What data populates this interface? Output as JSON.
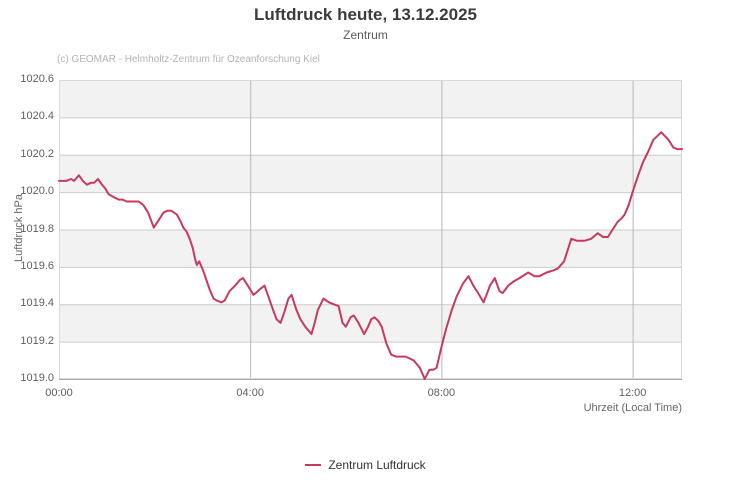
{
  "chart_data": {
    "type": "line",
    "title": "Luftdruck heute, 13.12.2025",
    "subtitle": "Zentrum",
    "credits": "(c) GEOMAR - Helmholtz-Zentrum für Ozeanforschung Kiel",
    "xlabel": "Uhrzeit (Local Time)",
    "ylabel": "Luftdruck hPa",
    "ylim": [
      1019.0,
      1020.6
    ],
    "xlim_minutes": [
      0,
      782
    ],
    "grid": {
      "band_color": "#f2f2f2",
      "h_gridline_color": "#cccccc",
      "v_gridline_color": "#b9b9b9",
      "border_color": "#d9d9d9",
      "axis_line_color": "#a9a9a9",
      "alternating_bands": true
    },
    "legend_position": "bottom-center",
    "y_ticks": [
      {
        "v": 1019.0,
        "label": "1019.0"
      },
      {
        "v": 1019.2,
        "label": "1019.2"
      },
      {
        "v": 1019.4,
        "label": "1019.4"
      },
      {
        "v": 1019.6,
        "label": "1019.6"
      },
      {
        "v": 1019.8,
        "label": "1019.8"
      },
      {
        "v": 1020.0,
        "label": "1020.0"
      },
      {
        "v": 1020.2,
        "label": "1020.2"
      },
      {
        "v": 1020.4,
        "label": "1020.4"
      },
      {
        "v": 1020.6,
        "label": "1020.6"
      }
    ],
    "x_ticks": [
      {
        "t": 0,
        "label": "00:00"
      },
      {
        "t": 240,
        "label": "04:00"
      },
      {
        "t": 480,
        "label": "08:00"
      },
      {
        "t": 720,
        "label": "12:00"
      }
    ],
    "series": [
      {
        "name": "Zentrum Luftdruck",
        "color": "#c63a5d",
        "points": [
          [
            0,
            1020.06
          ],
          [
            9,
            1020.06
          ],
          [
            15,
            1020.07
          ],
          [
            19,
            1020.06
          ],
          [
            25,
            1020.09
          ],
          [
            30,
            1020.06
          ],
          [
            35,
            1020.04
          ],
          [
            40,
            1020.05
          ],
          [
            44,
            1020.05
          ],
          [
            49,
            1020.07
          ],
          [
            54,
            1020.04
          ],
          [
            58,
            1020.02
          ],
          [
            62,
            1019.99
          ],
          [
            66,
            1019.98
          ],
          [
            70,
            1019.97
          ],
          [
            75,
            1019.96
          ],
          [
            80,
            1019.96
          ],
          [
            85,
            1019.95
          ],
          [
            90,
            1019.95
          ],
          [
            95,
            1019.95
          ],
          [
            100,
            1019.95
          ],
          [
            106,
            1019.93
          ],
          [
            112,
            1019.89
          ],
          [
            119,
            1019.81
          ],
          [
            125,
            1019.85
          ],
          [
            131,
            1019.89
          ],
          [
            136,
            1019.9
          ],
          [
            141,
            1019.9
          ],
          [
            148,
            1019.88
          ],
          [
            153,
            1019.84
          ],
          [
            156,
            1019.81
          ],
          [
            160,
            1019.79
          ],
          [
            164,
            1019.75
          ],
          [
            168,
            1019.7
          ],
          [
            171,
            1019.64
          ],
          [
            173,
            1019.61
          ],
          [
            176,
            1019.63
          ],
          [
            181,
            1019.58
          ],
          [
            185,
            1019.53
          ],
          [
            189,
            1019.48
          ],
          [
            194,
            1019.43
          ],
          [
            198,
            1019.42
          ],
          [
            204,
            1019.41
          ],
          [
            208,
            1019.42
          ],
          [
            214,
            1019.47
          ],
          [
            221,
            1019.5
          ],
          [
            227,
            1019.53
          ],
          [
            231,
            1019.54
          ],
          [
            237,
            1019.5
          ],
          [
            244,
            1019.45
          ],
          [
            247,
            1019.46
          ],
          [
            252,
            1019.48
          ],
          [
            258,
            1019.5
          ],
          [
            263,
            1019.44
          ],
          [
            267,
            1019.39
          ],
          [
            273,
            1019.32
          ],
          [
            278,
            1019.3
          ],
          [
            283,
            1019.36
          ],
          [
            288,
            1019.43
          ],
          [
            292,
            1019.45
          ],
          [
            298,
            1019.37
          ],
          [
            303,
            1019.32
          ],
          [
            309,
            1019.28
          ],
          [
            313,
            1019.26
          ],
          [
            317,
            1019.24
          ],
          [
            321,
            1019.3
          ],
          [
            325,
            1019.37
          ],
          [
            332,
            1019.43
          ],
          [
            339,
            1019.41
          ],
          [
            345,
            1019.4
          ],
          [
            351,
            1019.39
          ],
          [
            356,
            1019.3
          ],
          [
            360,
            1019.28
          ],
          [
            366,
            1019.33
          ],
          [
            370,
            1019.34
          ],
          [
            376,
            1019.3
          ],
          [
            383,
            1019.24
          ],
          [
            388,
            1019.28
          ],
          [
            392,
            1019.32
          ],
          [
            396,
            1019.33
          ],
          [
            401,
            1019.31
          ],
          [
            405,
            1019.28
          ],
          [
            411,
            1019.19
          ],
          [
            417,
            1019.13
          ],
          [
            423,
            1019.12
          ],
          [
            429,
            1019.12
          ],
          [
            435,
            1019.12
          ],
          [
            440,
            1019.11
          ],
          [
            445,
            1019.1
          ],
          [
            449,
            1019.08
          ],
          [
            453,
            1019.06
          ],
          [
            459,
            1019.0
          ],
          [
            465,
            1019.05
          ],
          [
            470,
            1019.05
          ],
          [
            474,
            1019.06
          ],
          [
            480,
            1019.17
          ],
          [
            486,
            1019.27
          ],
          [
            493,
            1019.37
          ],
          [
            499,
            1019.44
          ],
          [
            507,
            1019.51
          ],
          [
            514,
            1019.55
          ],
          [
            520,
            1019.5
          ],
          [
            526,
            1019.46
          ],
          [
            533,
            1019.41
          ],
          [
            541,
            1019.5
          ],
          [
            547,
            1019.54
          ],
          [
            553,
            1019.47
          ],
          [
            557,
            1019.46
          ],
          [
            564,
            1019.5
          ],
          [
            570,
            1019.52
          ],
          [
            578,
            1019.54
          ],
          [
            589,
            1019.57
          ],
          [
            597,
            1019.55
          ],
          [
            603,
            1019.55
          ],
          [
            612,
            1019.57
          ],
          [
            620,
            1019.58
          ],
          [
            626,
            1019.59
          ],
          [
            634,
            1019.63
          ],
          [
            643,
            1019.75
          ],
          [
            650,
            1019.74
          ],
          [
            655,
            1019.74
          ],
          [
            660,
            1019.74
          ],
          [
            668,
            1019.75
          ],
          [
            676,
            1019.78
          ],
          [
            683,
            1019.76
          ],
          [
            689,
            1019.76
          ],
          [
            695,
            1019.8
          ],
          [
            701,
            1019.84
          ],
          [
            706,
            1019.86
          ],
          [
            710,
            1019.88
          ],
          [
            715,
            1019.93
          ],
          [
            720,
            1020.0
          ],
          [
            727,
            1020.09
          ],
          [
            733,
            1020.16
          ],
          [
            740,
            1020.22
          ],
          [
            746,
            1020.28
          ],
          [
            756,
            1020.32
          ],
          [
            765,
            1020.28
          ],
          [
            771,
            1020.24
          ],
          [
            776,
            1020.23
          ],
          [
            782,
            1020.23
          ]
        ]
      }
    ]
  }
}
